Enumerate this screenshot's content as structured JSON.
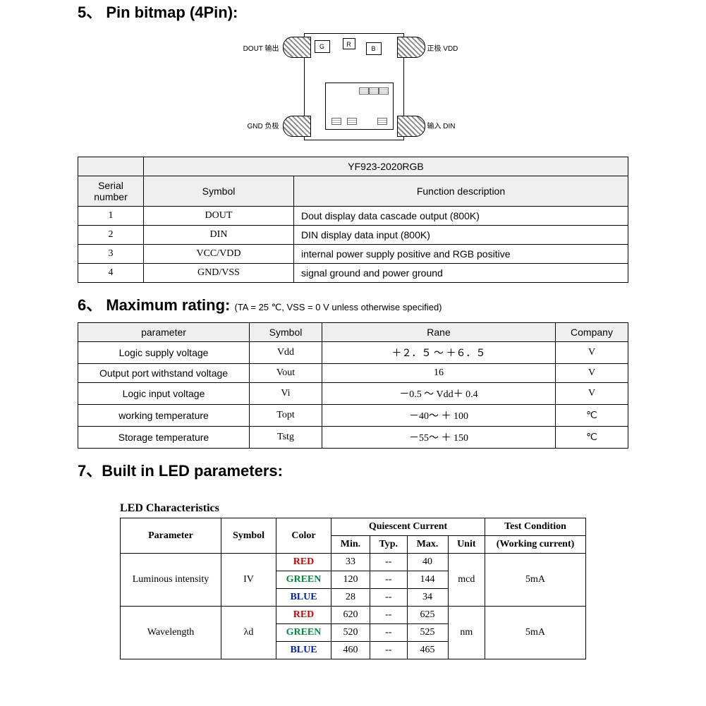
{
  "section5": {
    "heading": "5、 Pin bitmap (4Pin):",
    "pins": {
      "tl": "DOUT 输出",
      "tr": "正极 VDD",
      "bl": "GND 负极",
      "br": "输入 DIN"
    },
    "dies": {
      "g": "G",
      "r": "R",
      "b": "B"
    }
  },
  "pinTable": {
    "partNumber": "YF923-2020RGB",
    "headers": {
      "serial": "Serial number",
      "symbol": "Symbol",
      "func": "Function description"
    },
    "rows": [
      {
        "n": "1",
        "sym": "DOUT",
        "desc": "Dout display data cascade output (800K)"
      },
      {
        "n": "2",
        "sym": "DIN",
        "desc": "DIN display data input (800K)"
      },
      {
        "n": "3",
        "sym": "VCC/VDD",
        "desc": "internal power supply positive and RGB positive"
      },
      {
        "n": "4",
        "sym": "GND/VSS",
        "desc": "signal ground and power ground"
      }
    ]
  },
  "section6": {
    "heading": "6、 Maximum rating:",
    "subnote": "(TA = 25 ℃, VSS = 0 V unless otherwise specified)",
    "headers": {
      "param": "parameter",
      "symbol": "Symbol",
      "range": "Rane",
      "company": "Company"
    },
    "rows": [
      {
        "p": "Logic supply voltage",
        "s": "Vdd",
        "r": "＋２．５ ～ ＋６．５",
        "u": "V"
      },
      {
        "p": "Output port withstand voltage",
        "s": "Vout",
        "r": "16",
        "u": "V"
      },
      {
        "p": "Logic input voltage",
        "s": "Vi",
        "r": "－0.5 ～ Vdd＋ 0.4",
        "u": "V"
      },
      {
        "p": "working temperature",
        "s": "Topt",
        "r": "－40～ ＋ 100",
        "u": "℃"
      },
      {
        "p": "Storage temperature",
        "s": "Tstg",
        "r": "－55～ ＋ 150",
        "u": "℃"
      }
    ]
  },
  "section7": {
    "heading": "7、Built in LED parameters:",
    "ledTitle": "LED Characteristics",
    "headers": {
      "param": "Parameter",
      "symbol": "Symbol",
      "color": "Color",
      "quiescent": "Quiescent Current",
      "min": "Min.",
      "typ": "Typ.",
      "max": "Max.",
      "unit": "Unit",
      "cond": "Test Condition",
      "cond2": "(Working current)"
    },
    "luminous": {
      "name": "Luminous intensity",
      "symbol": "IV",
      "unit": "mcd",
      "cond": "5mA",
      "rows": [
        {
          "color": "RED",
          "cls": "c-red",
          "min": "33",
          "typ": "--",
          "max": "40"
        },
        {
          "color": "GREEN",
          "cls": "c-green",
          "min": "120",
          "typ": "--",
          "max": "144"
        },
        {
          "color": "BLUE",
          "cls": "c-blue",
          "min": "28",
          "typ": "--",
          "max": "34"
        }
      ]
    },
    "wavelength": {
      "name": "Wavelength",
      "symbol": "λd",
      "unit": "nm",
      "cond": "5mA",
      "rows": [
        {
          "color": "RED",
          "cls": "c-red",
          "min": "620",
          "typ": "--",
          "max": "625"
        },
        {
          "color": "GREEN",
          "cls": "c-green",
          "min": "520",
          "typ": "--",
          "max": "525"
        },
        {
          "color": "BLUE",
          "cls": "c-blue",
          "min": "460",
          "typ": "--",
          "max": "465"
        }
      ]
    }
  }
}
